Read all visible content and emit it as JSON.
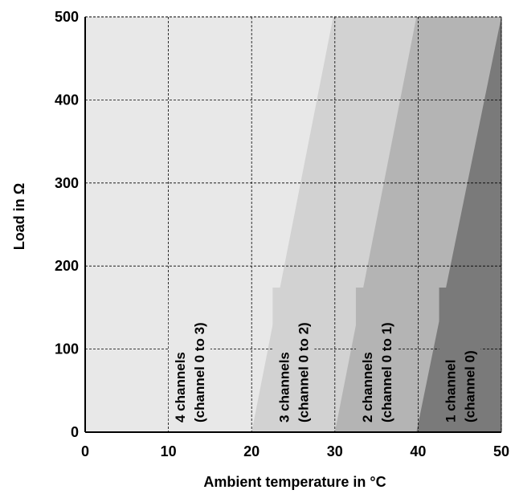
{
  "chart_data": {
    "type": "area",
    "title": "",
    "xlabel": "Ambient temperature in °C",
    "ylabel": "Load in Ω",
    "xlim": [
      0,
      50
    ],
    "ylim": [
      0,
      500
    ],
    "x_ticks": [
      0,
      10,
      20,
      30,
      40,
      50
    ],
    "y_ticks": [
      0,
      100,
      200,
      300,
      400,
      500
    ],
    "x_tick_labels": [
      "0",
      "10",
      "20",
      "30",
      "40",
      "50"
    ],
    "y_tick_labels": [
      "0",
      "100",
      "200",
      "300",
      "400",
      "500"
    ],
    "grid": true,
    "grid_style": "dashed",
    "regions": [
      {
        "line1": "4 channels",
        "line2": "(channel 0 to 3)",
        "color": "#e8e8e8",
        "boundary": [
          [
            20,
            0
          ],
          [
            29.8,
            500
          ]
        ],
        "label_x": 13.5
      },
      {
        "line1": "3 channels",
        "line2": "(channel 0 to 2)",
        "color": "#d2d2d2",
        "boundary": [
          [
            30,
            0
          ],
          [
            39.8,
            500
          ]
        ],
        "label_x": 26
      },
      {
        "line1": "2 channels",
        "line2": "(channel 0 to 1)",
        "color": "#b4b4b4",
        "boundary": [
          [
            39.8,
            0
          ],
          [
            50,
            500
          ]
        ],
        "label_x": 36
      },
      {
        "line1": "1 channel",
        "line2": "(channel 0)",
        "color": "#7a7a7a",
        "boundary": null,
        "label_x": 46
      }
    ]
  }
}
